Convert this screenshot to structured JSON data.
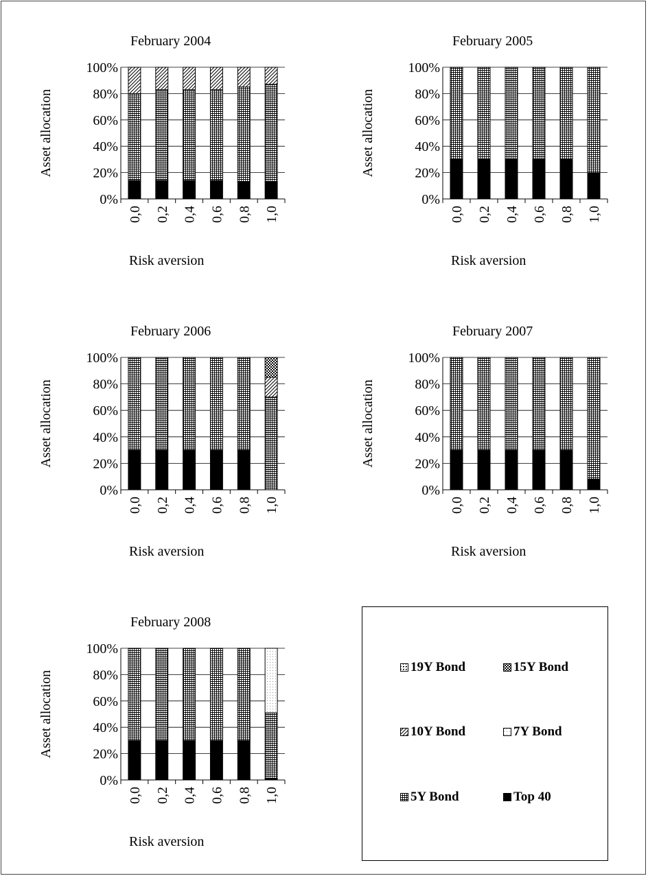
{
  "chart_data": [
    {
      "type": "stacked-bar-100",
      "title": "February 2004",
      "xlabel": "Risk aversion",
      "ylabel": "Asset allocation",
      "ylim": [
        0,
        100
      ],
      "yticks": [
        "0%",
        "20%",
        "40%",
        "60%",
        "80%",
        "100%"
      ],
      "categories": [
        "0,0",
        "0,2",
        "0,4",
        "0,6",
        "0,8",
        "1,0"
      ],
      "series": [
        {
          "name": "Top 40",
          "values": [
            14,
            14,
            14,
            14,
            13,
            13
          ]
        },
        {
          "name": "5Y Bond",
          "values": [
            66,
            69,
            69,
            69,
            72,
            74
          ]
        },
        {
          "name": "7Y Bond",
          "values": [
            0,
            0,
            0,
            0,
            0,
            0
          ]
        },
        {
          "name": "10Y Bond",
          "values": [
            20,
            17,
            17,
            17,
            15,
            13
          ]
        },
        {
          "name": "15Y Bond",
          "values": [
            0,
            0,
            0,
            0,
            0,
            0
          ]
        },
        {
          "name": "19Y Bond",
          "values": [
            0,
            0,
            0,
            0,
            0,
            0
          ]
        }
      ]
    },
    {
      "type": "stacked-bar-100",
      "title": "February 2005",
      "xlabel": "Risk aversion",
      "ylabel": "Asset allocation",
      "ylim": [
        0,
        100
      ],
      "yticks": [
        "0%",
        "20%",
        "40%",
        "60%",
        "80%",
        "100%"
      ],
      "categories": [
        "0,0",
        "0,2",
        "0,4",
        "0,6",
        "0,8",
        "1,0"
      ],
      "series": [
        {
          "name": "Top 40",
          "values": [
            30,
            30,
            30,
            30,
            30,
            20
          ]
        },
        {
          "name": "5Y Bond",
          "values": [
            70,
            70,
            70,
            70,
            70,
            80
          ]
        },
        {
          "name": "7Y Bond",
          "values": [
            0,
            0,
            0,
            0,
            0,
            0
          ]
        },
        {
          "name": "10Y Bond",
          "values": [
            0,
            0,
            0,
            0,
            0,
            0
          ]
        },
        {
          "name": "15Y Bond",
          "values": [
            0,
            0,
            0,
            0,
            0,
            0
          ]
        },
        {
          "name": "19Y Bond",
          "values": [
            0,
            0,
            0,
            0,
            0,
            0
          ]
        }
      ]
    },
    {
      "type": "stacked-bar-100",
      "title": "February 2006",
      "xlabel": "Risk aversion",
      "ylabel": "Asset allocation",
      "ylim": [
        0,
        100
      ],
      "yticks": [
        "0%",
        "20%",
        "40%",
        "60%",
        "80%",
        "100%"
      ],
      "categories": [
        "0,0",
        "0,2",
        "0,4",
        "0,6",
        "0,8",
        "1,0"
      ],
      "series": [
        {
          "name": "Top 40",
          "values": [
            30,
            30,
            30,
            30,
            30,
            0
          ]
        },
        {
          "name": "5Y Bond",
          "values": [
            70,
            70,
            70,
            70,
            70,
            70
          ]
        },
        {
          "name": "7Y Bond",
          "values": [
            0,
            0,
            0,
            0,
            0,
            0
          ]
        },
        {
          "name": "10Y Bond",
          "values": [
            0,
            0,
            0,
            0,
            0,
            15
          ]
        },
        {
          "name": "15Y Bond",
          "values": [
            0,
            0,
            0,
            0,
            0,
            15
          ]
        },
        {
          "name": "19Y Bond",
          "values": [
            0,
            0,
            0,
            0,
            0,
            0
          ]
        }
      ]
    },
    {
      "type": "stacked-bar-100",
      "title": "February 2007",
      "xlabel": "Risk aversion",
      "ylabel": "Asset allocation",
      "ylim": [
        0,
        100
      ],
      "yticks": [
        "0%",
        "20%",
        "40%",
        "60%",
        "80%",
        "100%"
      ],
      "categories": [
        "0,0",
        "0,2",
        "0,4",
        "0,6",
        "0,8",
        "1,0"
      ],
      "series": [
        {
          "name": "Top 40",
          "values": [
            30,
            30,
            30,
            30,
            30,
            8
          ]
        },
        {
          "name": "5Y Bond",
          "values": [
            70,
            70,
            70,
            70,
            70,
            92
          ]
        },
        {
          "name": "7Y Bond",
          "values": [
            0,
            0,
            0,
            0,
            0,
            0
          ]
        },
        {
          "name": "10Y Bond",
          "values": [
            0,
            0,
            0,
            0,
            0,
            0
          ]
        },
        {
          "name": "15Y Bond",
          "values": [
            0,
            0,
            0,
            0,
            0,
            0
          ]
        },
        {
          "name": "19Y Bond",
          "values": [
            0,
            0,
            0,
            0,
            0,
            0
          ]
        }
      ]
    },
    {
      "type": "stacked-bar-100",
      "title": "February 2008",
      "xlabel": "Risk aversion",
      "ylabel": "Asset allocation",
      "ylim": [
        0,
        100
      ],
      "yticks": [
        "0%",
        "20%",
        "40%",
        "60%",
        "80%",
        "100%"
      ],
      "categories": [
        "0,0",
        "0,2",
        "0,4",
        "0,6",
        "0,8",
        "1,0"
      ],
      "series": [
        {
          "name": "Top 40",
          "values": [
            30,
            30,
            30,
            30,
            30,
            1
          ]
        },
        {
          "name": "5Y Bond",
          "values": [
            70,
            70,
            70,
            70,
            70,
            50
          ]
        },
        {
          "name": "7Y Bond",
          "values": [
            0,
            0,
            0,
            0,
            0,
            49
          ]
        },
        {
          "name": "10Y Bond",
          "values": [
            0,
            0,
            0,
            0,
            0,
            0
          ]
        },
        {
          "name": "15Y Bond",
          "values": [
            0,
            0,
            0,
            0,
            0,
            0
          ]
        },
        {
          "name": "19Y Bond",
          "values": [
            0,
            0,
            0,
            0,
            0,
            0
          ]
        }
      ]
    }
  ],
  "legend": {
    "items": [
      {
        "label": "19Y Bond",
        "pattern": "pat-19y"
      },
      {
        "label": "15Y Bond",
        "pattern": "pat-15y"
      },
      {
        "label": "10Y Bond",
        "pattern": "pat-10y"
      },
      {
        "label": "7Y Bond",
        "pattern": "pat-7y"
      },
      {
        "label": "5Y Bond",
        "pattern": "pat-5y"
      },
      {
        "label": "Top 40",
        "pattern": "pat-top40"
      }
    ]
  }
}
